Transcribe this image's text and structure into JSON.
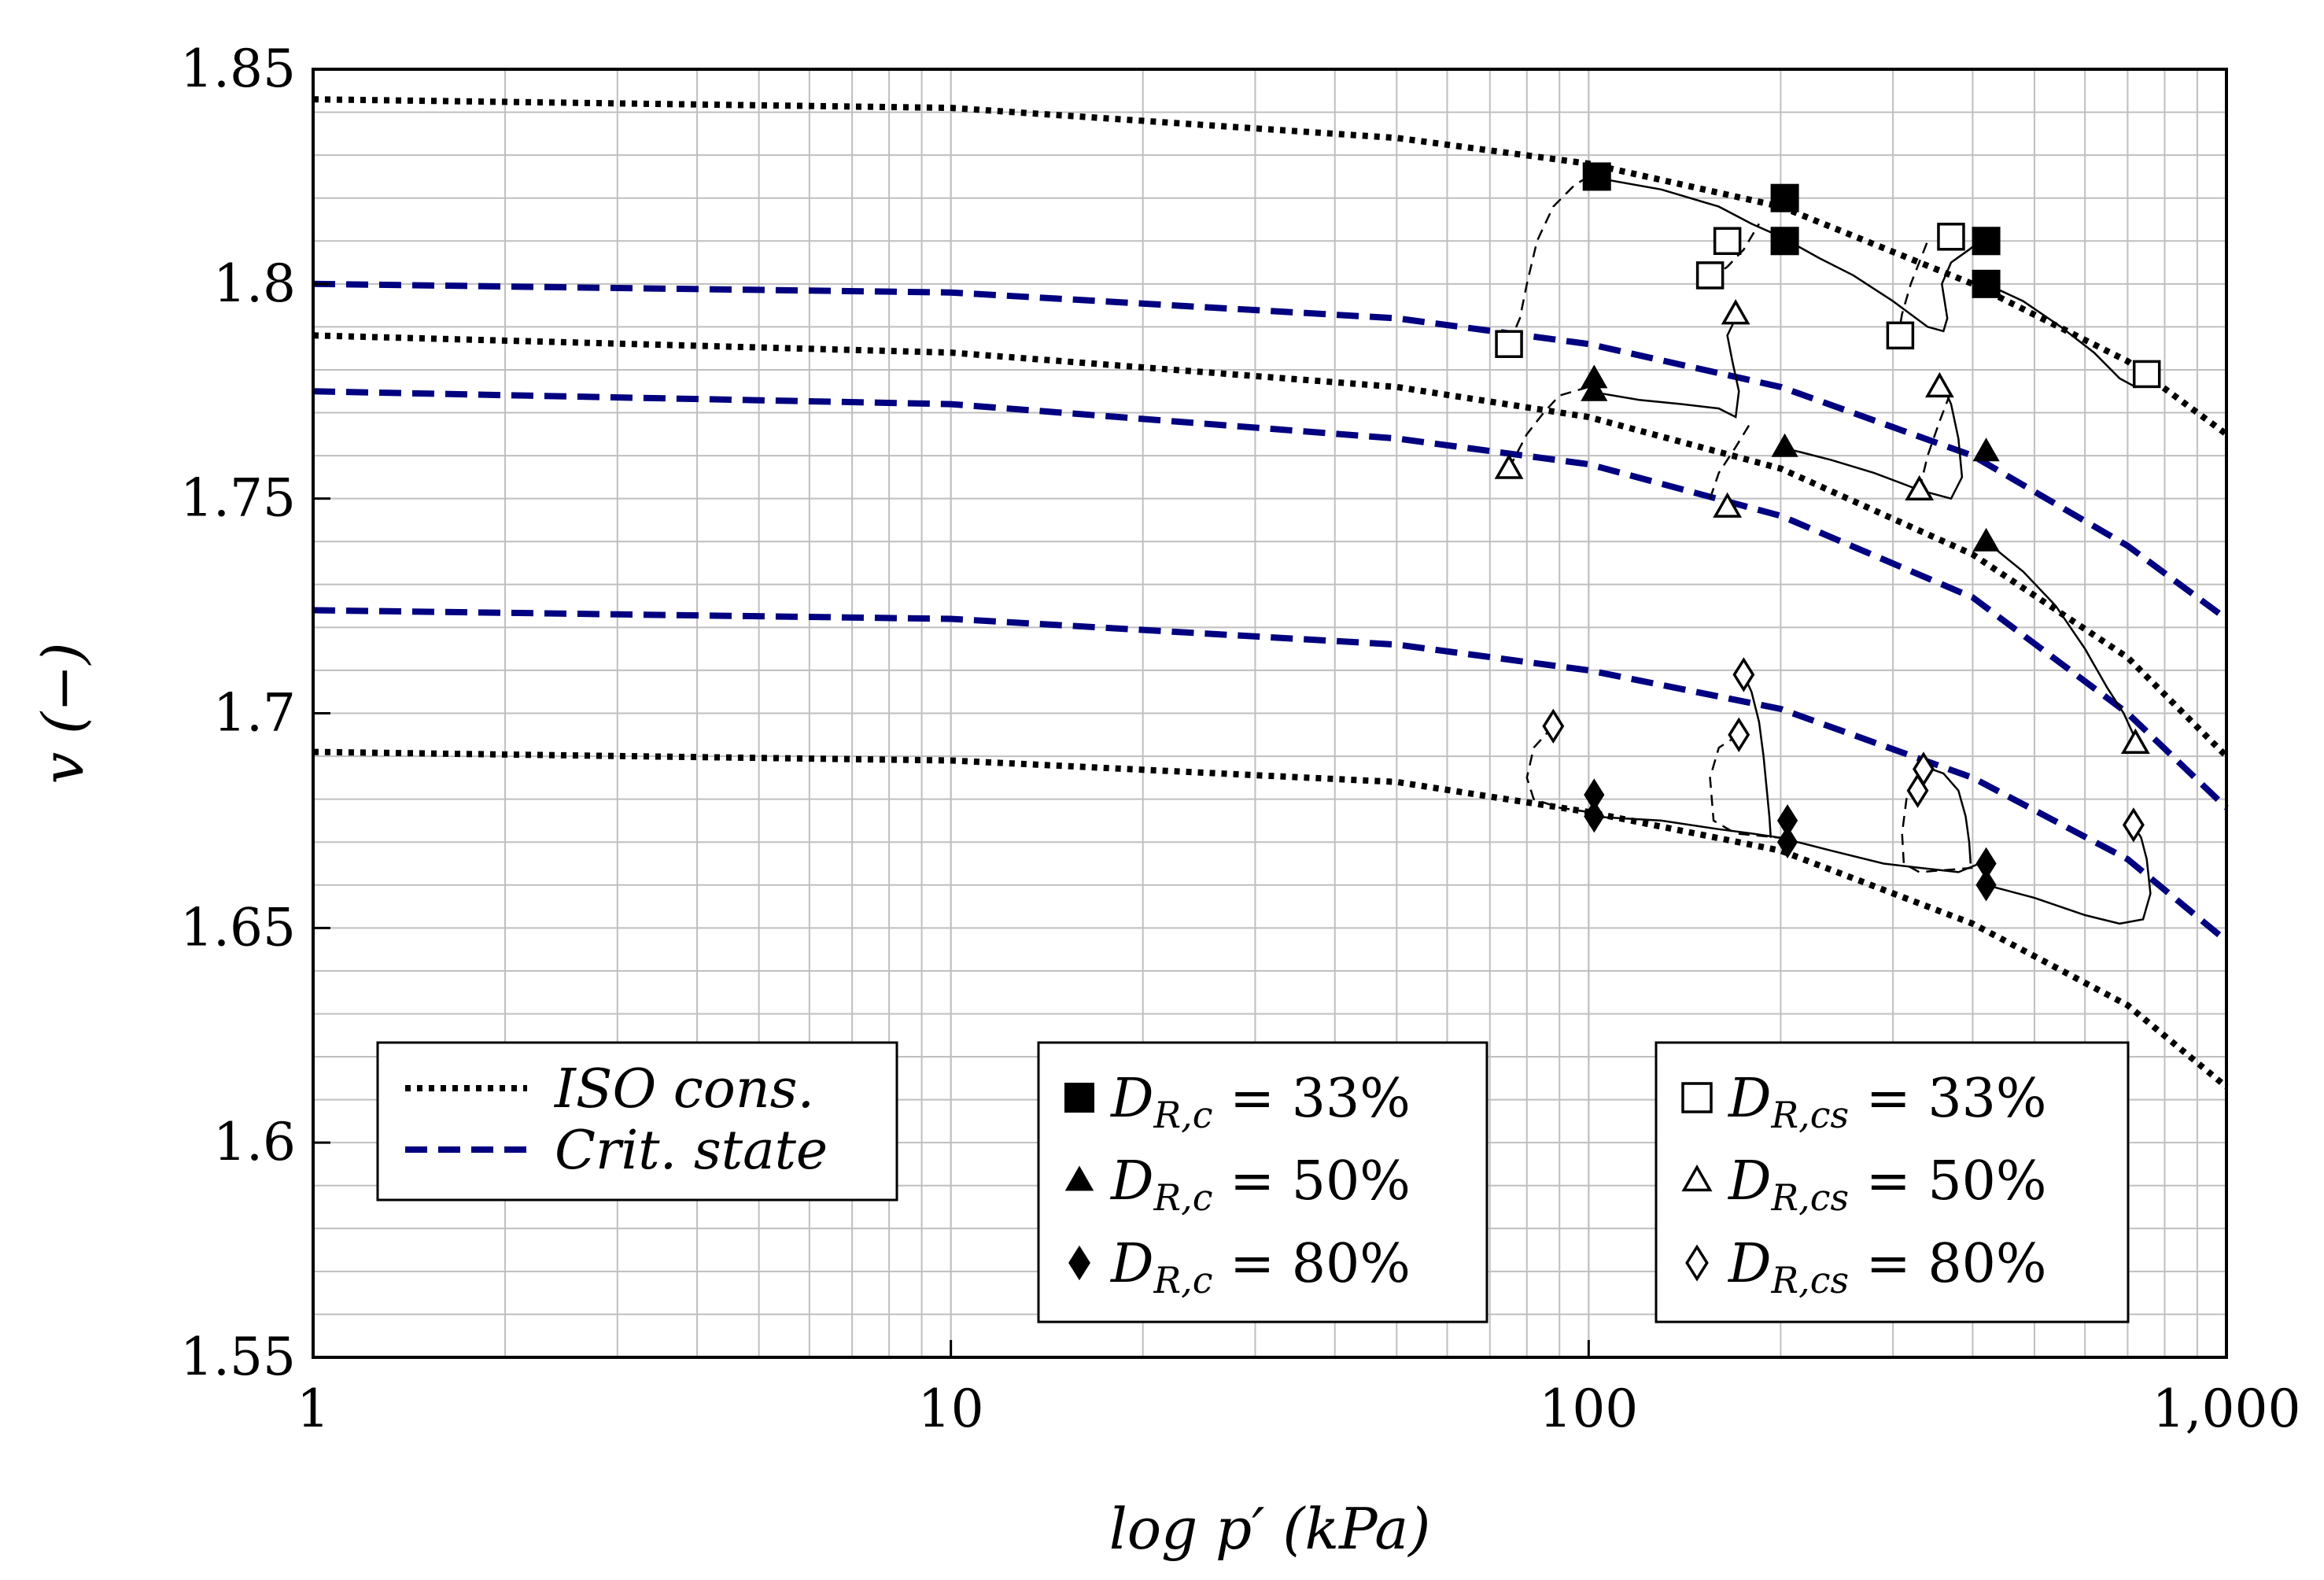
{
  "chart_data": {
    "type": "line",
    "xscale": "log",
    "xlim": [
      1,
      1000
    ],
    "ylim": [
      1.55,
      1.85
    ],
    "xticks": [
      1,
      10,
      100,
      1000
    ],
    "xtick_labels": [
      "1",
      "10",
      "100",
      "1,000"
    ],
    "yticks": [
      1.55,
      1.6,
      1.65,
      1.7,
      1.75,
      1.8,
      1.85
    ],
    "ytick_labels": [
      "1.55",
      "1.6",
      "1.65",
      "1.7",
      "1.75",
      "1.8",
      "1.85"
    ],
    "grid": true,
    "xlabel": "log p′ (kPa)",
    "ylabel": "v (−)",
    "colors": {
      "iso": "#000000",
      "crit": "#000080",
      "grid": "#bfbfbf"
    },
    "series": [
      {
        "name": "ISO cons.",
        "style": "dotted",
        "x": [
          1,
          10,
          50,
          100,
          200,
          400,
          700,
          1000
        ],
        "y": [
          1.843,
          1.841,
          1.834,
          1.828,
          1.818,
          1.8,
          1.782,
          1.765
        ]
      },
      {
        "name": "ISO cons.",
        "style": "dotted",
        "x": [
          1,
          10,
          50,
          100,
          200,
          400,
          700,
          1000
        ],
        "y": [
          1.788,
          1.784,
          1.776,
          1.769,
          1.757,
          1.737,
          1.713,
          1.69
        ]
      },
      {
        "name": "ISO cons.",
        "style": "dotted",
        "x": [
          1,
          10,
          50,
          100,
          200,
          400,
          700,
          1000
        ],
        "y": [
          1.691,
          1.689,
          1.684,
          1.677,
          1.668,
          1.651,
          1.632,
          1.613
        ]
      },
      {
        "name": "Crit. state",
        "style": "dashed",
        "x": [
          1,
          10,
          50,
          100,
          200,
          400,
          700,
          1000
        ],
        "y": [
          1.8,
          1.798,
          1.792,
          1.786,
          1.776,
          1.76,
          1.739,
          1.722
        ]
      },
      {
        "name": "Crit. state",
        "style": "dashed",
        "x": [
          1,
          10,
          50,
          100,
          200,
          400,
          700,
          1000
        ],
        "y": [
          1.775,
          1.772,
          1.764,
          1.758,
          1.746,
          1.727,
          1.7,
          1.678
        ]
      },
      {
        "name": "Crit. state",
        "style": "dashed",
        "x": [
          1,
          10,
          50,
          100,
          200,
          400,
          700,
          1000
        ],
        "y": [
          1.724,
          1.722,
          1.716,
          1.71,
          1.701,
          1.685,
          1.666,
          1.647
        ]
      }
    ],
    "paths": [
      {
        "style": "solid",
        "x": [
          100,
          130,
          160,
          180,
          200,
          230,
          260,
          300,
          340,
          360,
          365,
          358,
          370,
          395,
          410
        ],
        "y": [
          1.825,
          1.822,
          1.818,
          1.814,
          1.811,
          1.806,
          1.802,
          1.796,
          1.79,
          1.789,
          1.792,
          1.8,
          1.805,
          1.808,
          1.81
        ]
      },
      {
        "style": "solid",
        "x": [
          420,
          480,
          550,
          620,
          680,
          720,
          750
        ],
        "y": [
          1.8,
          1.796,
          1.79,
          1.784,
          1.778,
          1.776,
          1.779
        ]
      },
      {
        "style": "solid",
        "x": [
          100,
          120,
          140,
          160,
          170,
          172,
          168,
          165,
          170,
          172
        ],
        "y": [
          1.775,
          1.773,
          1.772,
          1.771,
          1.769,
          1.775,
          1.782,
          1.788,
          1.792,
          1.794
        ]
      },
      {
        "style": "solid",
        "x": [
          200,
          240,
          280,
          330,
          370,
          385,
          380,
          370,
          360,
          350
        ],
        "y": [
          1.762,
          1.759,
          1.756,
          1.752,
          1.75,
          1.755,
          1.764,
          1.772,
          1.776,
          1.777
        ]
      },
      {
        "style": "solid",
        "x": [
          420,
          480,
          540,
          600,
          650,
          690,
          720
        ],
        "y": [
          1.74,
          1.733,
          1.725,
          1.715,
          1.706,
          1.7,
          1.694
        ]
      },
      {
        "style": "solid",
        "x": [
          100,
          130,
          160,
          180,
          200,
          240,
          290,
          330,
          380,
          410
        ],
        "y": [
          1.676,
          1.675,
          1.673,
          1.672,
          1.671,
          1.668,
          1.665,
          1.664,
          1.663,
          1.665
        ]
      },
      {
        "style": "solid",
        "x": [
          175,
          180,
          185,
          188,
          190,
          192,
          193
        ],
        "y": [
          1.709,
          1.705,
          1.698,
          1.69,
          1.683,
          1.676,
          1.671
        ]
      },
      {
        "style": "solid",
        "x": [
          330,
          360,
          380,
          390,
          395,
          397
        ],
        "y": [
          1.688,
          1.686,
          1.682,
          1.676,
          1.67,
          1.665
        ]
      },
      {
        "style": "solid",
        "x": [
          420,
          500,
          600,
          680,
          740,
          760,
          750,
          735,
          715
        ],
        "y": [
          1.66,
          1.657,
          1.653,
          1.651,
          1.652,
          1.658,
          1.666,
          1.671,
          1.674
        ]
      },
      {
        "style": "dashed",
        "x": [
          75,
          78,
          80,
          83,
          88,
          95,
          100
        ],
        "y": [
          1.786,
          1.792,
          1.8,
          1.81,
          1.818,
          1.823,
          1.825
        ]
      },
      {
        "style": "dashed",
        "x": [
          75,
          80,
          85,
          90,
          100
        ],
        "y": [
          1.757,
          1.765,
          1.77,
          1.774,
          1.776
        ]
      },
      {
        "style": "dashed",
        "x": [
          155,
          165,
          175,
          185
        ],
        "y": [
          1.801,
          1.804,
          1.808,
          1.814
        ]
      },
      {
        "style": "dashed",
        "x": [
          305,
          310,
          320,
          340
        ],
        "y": [
          1.787,
          1.793,
          1.8,
          1.81
        ]
      },
      {
        "style": "dashed",
        "x": [
          155,
          160,
          170,
          180
        ],
        "y": [
          1.75,
          1.756,
          1.762,
          1.768
        ]
      },
      {
        "style": "dashed",
        "x": [
          330,
          340,
          355,
          370
        ],
        "y": [
          1.752,
          1.76,
          1.768,
          1.775
        ]
      },
      {
        "style": "dashed",
        "x": [
          88,
          82,
          80,
          82,
          90,
          100
        ],
        "y": [
          1.697,
          1.692,
          1.685,
          1.68,
          1.678,
          1.677
        ]
      },
      {
        "style": "dashed",
        "x": [
          172,
          160,
          155,
          157,
          170,
          200
        ],
        "y": [
          1.695,
          1.692,
          1.685,
          1.675,
          1.672,
          1.671
        ]
      },
      {
        "style": "dashed",
        "x": [
          325,
          315,
          310,
          312,
          330,
          400
        ],
        "y": [
          1.684,
          1.68,
          1.672,
          1.665,
          1.663,
          1.664
        ]
      }
    ],
    "markers": [
      {
        "name": "D_R,c = 33%",
        "shape": "square",
        "filled": true,
        "points": [
          [
            103,
            1.825
          ],
          [
            203,
            1.82
          ],
          [
            203,
            1.81
          ],
          [
            420,
            1.81
          ],
          [
            420,
            1.8
          ]
        ]
      },
      {
        "name": "D_R,c = 50%",
        "shape": "triangle",
        "filled": true,
        "points": [
          [
            102,
            1.778
          ],
          [
            102,
            1.775
          ],
          [
            203,
            1.762
          ],
          [
            420,
            1.761
          ],
          [
            420,
            1.74
          ]
        ]
      },
      {
        "name": "D_R,c = 80%",
        "shape": "diamond",
        "filled": true,
        "points": [
          [
            102,
            1.681
          ],
          [
            102,
            1.676
          ],
          [
            205,
            1.675
          ],
          [
            205,
            1.67
          ],
          [
            420,
            1.665
          ],
          [
            420,
            1.66
          ]
        ]
      },
      {
        "name": "D_R,cs = 33%",
        "shape": "square",
        "filled": false,
        "points": [
          [
            75,
            1.786
          ],
          [
            165,
            1.81
          ],
          [
            155,
            1.802
          ],
          [
            308,
            1.788
          ],
          [
            370,
            1.811
          ],
          [
            750,
            1.779
          ]
        ]
      },
      {
        "name": "D_R,cs = 50%",
        "shape": "triangle",
        "filled": false,
        "points": [
          [
            75,
            1.757
          ],
          [
            170,
            1.793
          ],
          [
            165,
            1.748
          ],
          [
            355,
            1.776
          ],
          [
            330,
            1.752
          ],
          [
            720,
            1.693
          ]
        ]
      },
      {
        "name": "D_R,cs = 80%",
        "shape": "diamond",
        "filled": false,
        "points": [
          [
            88,
            1.697
          ],
          [
            175,
            1.709
          ],
          [
            172,
            1.695
          ],
          [
            335,
            1.687
          ],
          [
            328,
            1.682
          ],
          [
            715,
            1.674
          ]
        ]
      }
    ],
    "legends": [
      {
        "position": "bottom-left",
        "entries": [
          {
            "text": "ISO cons.",
            "kind": "line",
            "style": "dotted",
            "color": "#000000"
          },
          {
            "text": "Crit. state",
            "kind": "line",
            "style": "dashed",
            "color": "#000080"
          }
        ]
      },
      {
        "position": "bottom-center",
        "entries": [
          {
            "text": "D_R,c = 33%",
            "kind": "marker",
            "shape": "square",
            "filled": true
          },
          {
            "text": "D_R,c = 50%",
            "kind": "marker",
            "shape": "triangle",
            "filled": true
          },
          {
            "text": "D_R,c = 80%",
            "kind": "marker",
            "shape": "diamond",
            "filled": true
          }
        ]
      },
      {
        "position": "bottom-right",
        "entries": [
          {
            "text": "D_R,cs = 33%",
            "kind": "marker",
            "shape": "square",
            "filled": false
          },
          {
            "text": "D_R,cs = 50%",
            "kind": "marker",
            "shape": "triangle",
            "filled": false
          },
          {
            "text": "D_R,cs = 80%",
            "kind": "marker",
            "shape": "diamond",
            "filled": false
          }
        ]
      }
    ]
  }
}
